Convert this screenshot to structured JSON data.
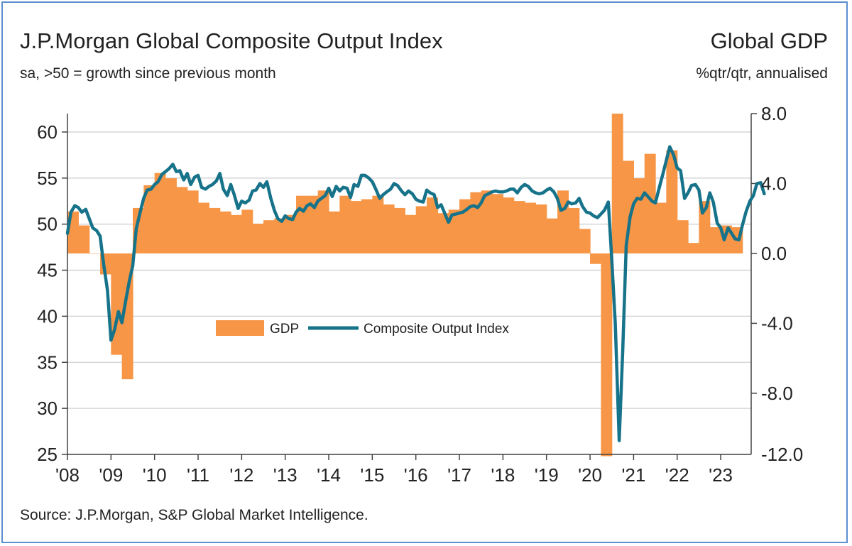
{
  "title_left": "J.P.Morgan Global Composite Output Index",
  "subtitle_left": "sa, >50 = growth since previous month",
  "title_right": "Global GDP",
  "subtitle_right": "%qtr/qtr, annualised",
  "source": "Source: J.P.Morgan, S&P Global Market Intelligence.",
  "colors": {
    "gdp": "#f79646",
    "index": "#17738a",
    "grid": "#d0d0d0",
    "frame": "#5b8fd0"
  },
  "chart_data": {
    "type": "bar+line",
    "legend": {
      "placement": "center",
      "entries": [
        "GDP",
        "Composite Output Index"
      ]
    },
    "x_tick_labels": [
      "'08",
      "'09",
      "'10",
      "'11",
      "'12",
      "'13",
      "'14",
      "'15",
      "'16",
      "'17",
      "'18",
      "'19",
      "'20",
      "'21",
      "'22",
      "'23"
    ],
    "x_range": [
      2008.0,
      2023.7
    ],
    "left_axis": {
      "ylim": [
        25,
        62
      ],
      "tick_labels": [
        "60",
        "55",
        "50",
        "45",
        "40",
        "35",
        "30",
        "25"
      ],
      "tick_values": [
        60,
        55,
        50,
        45,
        40,
        35,
        30,
        25
      ]
    },
    "right_axis": {
      "ylim": [
        -11.5,
        8.0
      ],
      "tick_labels": [
        "8.0",
        "4.0",
        "0.0",
        "-4.0",
        "-8.0",
        "-12.0"
      ],
      "tick_values": [
        8,
        4,
        0,
        -4,
        -8,
        -12
      ]
    },
    "grid": true,
    "series": [
      {
        "name": "GDP",
        "axis": "right",
        "kind": "bar",
        "quarters": [
          "2008Q1",
          "2008Q2",
          "2008Q3",
          "2008Q4",
          "2009Q1",
          "2009Q2",
          "2009Q3",
          "2009Q4",
          "2010Q1",
          "2010Q2",
          "2010Q3",
          "2010Q4",
          "2011Q1",
          "2011Q2",
          "2011Q3",
          "2011Q4",
          "2012Q1",
          "2012Q2",
          "2012Q3",
          "2012Q4",
          "2013Q1",
          "2013Q2",
          "2013Q3",
          "2013Q4",
          "2014Q1",
          "2014Q2",
          "2014Q3",
          "2014Q4",
          "2015Q1",
          "2015Q2",
          "2015Q3",
          "2015Q4",
          "2016Q1",
          "2016Q2",
          "2016Q3",
          "2016Q4",
          "2017Q1",
          "2017Q2",
          "2017Q3",
          "2017Q4",
          "2018Q1",
          "2018Q2",
          "2018Q3",
          "2018Q4",
          "2019Q1",
          "2019Q2",
          "2019Q3",
          "2019Q4",
          "2020Q1",
          "2020Q2",
          "2020Q3",
          "2020Q4",
          "2021Q1",
          "2021Q2",
          "2021Q3",
          "2021Q4",
          "2022Q1",
          "2022Q2",
          "2022Q3",
          "2022Q4",
          "2023Q1",
          "2023Q2"
        ],
        "values": [
          2.4,
          1.6,
          0.0,
          -1.2,
          -5.8,
          -7.2,
          2.6,
          3.9,
          4.6,
          4.3,
          3.8,
          3.6,
          2.9,
          2.6,
          2.4,
          2.2,
          2.5,
          1.7,
          1.9,
          2.0,
          2.2,
          3.3,
          3.3,
          3.6,
          2.4,
          3.3,
          3.0,
          3.1,
          3.3,
          2.8,
          2.6,
          2.2,
          2.7,
          3.2,
          2.3,
          2.5,
          3.1,
          3.5,
          3.6,
          3.4,
          3.2,
          3.0,
          2.9,
          2.8,
          2.0,
          3.6,
          2.6,
          1.4,
          -0.6,
          -11.6,
          8.0,
          5.3,
          4.3,
          5.7,
          2.9,
          5.9,
          1.9,
          0.6,
          3.0,
          1.5,
          1.6,
          1.5
        ]
      },
      {
        "name": "Composite Output Index",
        "axis": "left",
        "kind": "line",
        "points": [
          [
            2008.0,
            49.0
          ],
          [
            2008.08,
            51.3
          ],
          [
            2008.17,
            52.0
          ],
          [
            2008.25,
            51.8
          ],
          [
            2008.33,
            51.3
          ],
          [
            2008.42,
            51.6
          ],
          [
            2008.5,
            50.6
          ],
          [
            2008.58,
            49.6
          ],
          [
            2008.67,
            49.3
          ],
          [
            2008.75,
            48.7
          ],
          [
            2008.83,
            45.7
          ],
          [
            2008.92,
            42.8
          ],
          [
            2009.0,
            37.4
          ],
          [
            2009.08,
            38.5
          ],
          [
            2009.17,
            40.5
          ],
          [
            2009.25,
            39.3
          ],
          [
            2009.33,
            41.5
          ],
          [
            2009.42,
            43.8
          ],
          [
            2009.5,
            45.5
          ],
          [
            2009.58,
            49.5
          ],
          [
            2009.67,
            51.3
          ],
          [
            2009.75,
            52.8
          ],
          [
            2009.83,
            53.7
          ],
          [
            2009.92,
            53.8
          ],
          [
            2010.0,
            54.3
          ],
          [
            2010.08,
            54.6
          ],
          [
            2010.17,
            55.4
          ],
          [
            2010.25,
            55.7
          ],
          [
            2010.33,
            56.0
          ],
          [
            2010.42,
            56.5
          ],
          [
            2010.5,
            55.7
          ],
          [
            2010.58,
            55.8
          ],
          [
            2010.67,
            54.8
          ],
          [
            2010.75,
            55.5
          ],
          [
            2010.83,
            54.3
          ],
          [
            2010.92,
            55.1
          ],
          [
            2011.0,
            55.3
          ],
          [
            2011.08,
            54.0
          ],
          [
            2011.17,
            53.8
          ],
          [
            2011.25,
            54.1
          ],
          [
            2011.33,
            54.3
          ],
          [
            2011.42,
            54.7
          ],
          [
            2011.5,
            55.5
          ],
          [
            2011.58,
            53.8
          ],
          [
            2011.67,
            53.1
          ],
          [
            2011.75,
            54.3
          ],
          [
            2011.83,
            53.2
          ],
          [
            2011.92,
            51.7
          ],
          [
            2012.0,
            52.5
          ],
          [
            2012.08,
            52.3
          ],
          [
            2012.17,
            52.6
          ],
          [
            2012.25,
            53.6
          ],
          [
            2012.33,
            53.7
          ],
          [
            2012.42,
            54.4
          ],
          [
            2012.5,
            54.0
          ],
          [
            2012.58,
            54.6
          ],
          [
            2012.67,
            52.8
          ],
          [
            2012.75,
            51.5
          ],
          [
            2012.83,
            50.6
          ],
          [
            2012.92,
            50.3
          ],
          [
            2013.0,
            50.9
          ],
          [
            2013.08,
            50.6
          ],
          [
            2013.17,
            50.5
          ],
          [
            2013.25,
            51.3
          ],
          [
            2013.33,
            51.7
          ],
          [
            2013.42,
            51.4
          ],
          [
            2013.5,
            52.0
          ],
          [
            2013.58,
            52.2
          ],
          [
            2013.67,
            51.8
          ],
          [
            2013.75,
            52.5
          ],
          [
            2013.83,
            52.8
          ],
          [
            2013.92,
            53.1
          ],
          [
            2014.0,
            53.9
          ],
          [
            2014.08,
            53.0
          ],
          [
            2014.17,
            54.1
          ],
          [
            2014.25,
            53.6
          ],
          [
            2014.33,
            54.0
          ],
          [
            2014.42,
            53.9
          ],
          [
            2014.5,
            52.9
          ],
          [
            2014.58,
            54.3
          ],
          [
            2014.67,
            54.1
          ],
          [
            2014.75,
            55.3
          ],
          [
            2014.83,
            55.3
          ],
          [
            2014.92,
            55.0
          ],
          [
            2015.0,
            54.6
          ],
          [
            2015.08,
            53.8
          ],
          [
            2015.17,
            52.8
          ],
          [
            2015.25,
            53.2
          ],
          [
            2015.33,
            53.5
          ],
          [
            2015.42,
            53.8
          ],
          [
            2015.5,
            54.4
          ],
          [
            2015.58,
            54.2
          ],
          [
            2015.67,
            53.6
          ],
          [
            2015.75,
            53.2
          ],
          [
            2015.83,
            53.6
          ],
          [
            2015.92,
            53.3
          ],
          [
            2016.0,
            52.7
          ],
          [
            2016.08,
            52.5
          ],
          [
            2016.17,
            52.4
          ],
          [
            2016.25,
            53.7
          ],
          [
            2016.33,
            53.4
          ],
          [
            2016.42,
            53.2
          ],
          [
            2016.5,
            51.8
          ],
          [
            2016.58,
            52.1
          ],
          [
            2016.67,
            51.1
          ],
          [
            2016.75,
            50.2
          ],
          [
            2016.83,
            51.0
          ],
          [
            2016.92,
            51.1
          ],
          [
            2017.0,
            51.2
          ],
          [
            2017.08,
            51.3
          ],
          [
            2017.17,
            51.6
          ],
          [
            2017.25,
            51.9
          ],
          [
            2017.33,
            52.0
          ],
          [
            2017.42,
            51.8
          ],
          [
            2017.5,
            52.3
          ],
          [
            2017.58,
            53.1
          ],
          [
            2017.67,
            53.3
          ],
          [
            2017.75,
            53.5
          ],
          [
            2017.83,
            53.6
          ],
          [
            2017.92,
            53.5
          ],
          [
            2018.0,
            53.5
          ],
          [
            2018.08,
            53.6
          ],
          [
            2018.17,
            53.8
          ],
          [
            2018.25,
            53.8
          ],
          [
            2018.33,
            53.4
          ],
          [
            2018.42,
            54.0
          ],
          [
            2018.5,
            54.3
          ],
          [
            2018.58,
            54.1
          ],
          [
            2018.67,
            53.6
          ],
          [
            2018.75,
            53.4
          ],
          [
            2018.83,
            53.3
          ],
          [
            2018.92,
            53.4
          ],
          [
            2019.0,
            53.7
          ],
          [
            2019.08,
            53.9
          ],
          [
            2019.17,
            53.5
          ],
          [
            2019.25,
            52.8
          ],
          [
            2019.33,
            51.5
          ],
          [
            2019.42,
            51.7
          ],
          [
            2019.5,
            52.4
          ],
          [
            2019.58,
            52.2
          ],
          [
            2019.67,
            52.3
          ],
          [
            2019.75,
            52.8
          ],
          [
            2019.83,
            51.9
          ],
          [
            2019.92,
            51.3
          ],
          [
            2020.0,
            51.2
          ],
          [
            2020.08,
            50.9
          ],
          [
            2020.17,
            50.7
          ],
          [
            2020.25,
            51.1
          ],
          [
            2020.33,
            51.5
          ],
          [
            2020.42,
            52.4
          ],
          [
            2020.5,
            46.1
          ],
          [
            2020.58,
            39.2
          ],
          [
            2020.67,
            26.5
          ],
          [
            2020.75,
            36.3
          ],
          [
            2020.83,
            47.7
          ],
          [
            2020.92,
            50.8
          ],
          [
            2021.0,
            52.2
          ],
          [
            2021.08,
            52.8
          ],
          [
            2021.17,
            52.7
          ],
          [
            2021.25,
            53.4
          ],
          [
            2021.33,
            53.0
          ],
          [
            2021.42,
            52.5
          ],
          [
            2021.5,
            52.3
          ],
          [
            2021.58,
            53.8
          ],
          [
            2021.67,
            55.4
          ],
          [
            2021.75,
            56.9
          ],
          [
            2021.83,
            58.4
          ],
          [
            2021.92,
            57.5
          ],
          [
            2022.0,
            56.1
          ],
          [
            2022.08,
            55.8
          ],
          [
            2022.17,
            52.8
          ],
          [
            2022.25,
            53.4
          ],
          [
            2022.33,
            54.2
          ],
          [
            2022.42,
            54.3
          ],
          [
            2022.5,
            53.7
          ],
          [
            2022.58,
            51.2
          ],
          [
            2022.67,
            51.8
          ],
          [
            2022.75,
            53.4
          ],
          [
            2022.83,
            52.4
          ],
          [
            2022.92,
            50.1
          ],
          [
            2023.0,
            49.6
          ],
          [
            2023.08,
            48.3
          ],
          [
            2023.17,
            49.6
          ],
          [
            2023.25,
            49.0
          ],
          [
            2023.33,
            48.4
          ],
          [
            2023.42,
            48.3
          ],
          [
            2023.5,
            49.9
          ],
          [
            2023.58,
            51.3
          ],
          [
            2023.67,
            52.5
          ],
          [
            2023.75,
            53.1
          ],
          [
            2023.83,
            54.4
          ],
          [
            2023.92,
            54.5
          ],
          [
            2024.0,
            53.3
          ]
        ]
      }
    ]
  }
}
